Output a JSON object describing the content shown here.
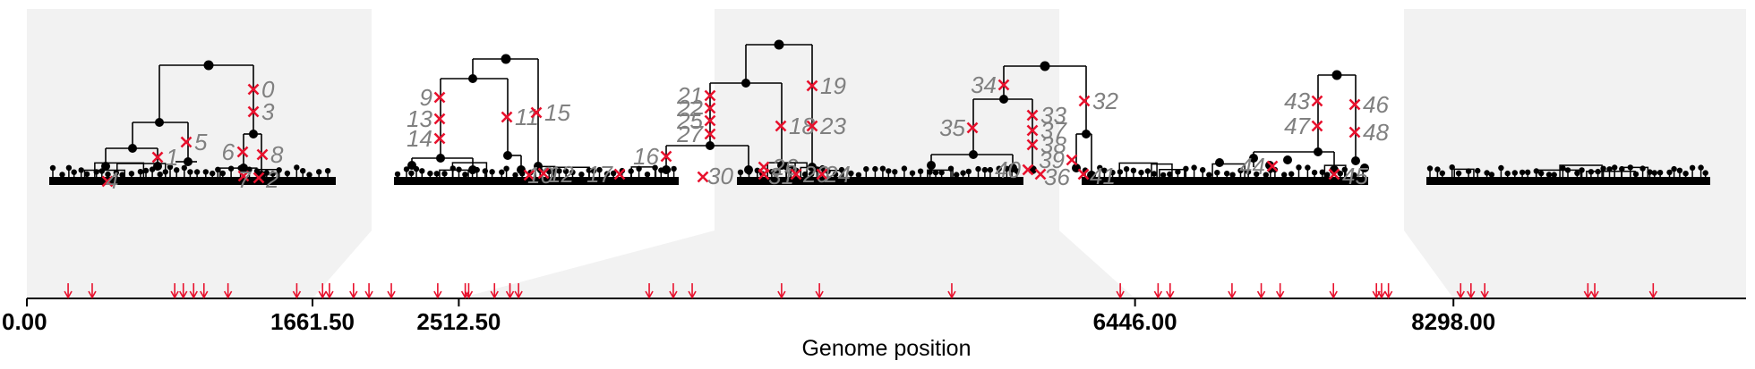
{
  "axis": {
    "title": "Genome position",
    "genome_length": 10000,
    "tick_labels": [
      "0.00",
      "1661.50",
      "2512.50",
      "6446.00",
      "8298.00"
    ],
    "tick_values": [
      0,
      1661.5,
      2512.5,
      6446,
      8298
    ]
  },
  "trees": [
    {
      "interval": [
        0,
        1661.5
      ],
      "mutation_labels": [
        "0",
        "3",
        "5",
        "1",
        "6",
        "8",
        "4",
        "7",
        "2"
      ]
    },
    {
      "interval": [
        1661.5,
        2512.5
      ],
      "mutation_labels": [
        "9",
        "13",
        "14",
        "11",
        "15",
        "10",
        "12"
      ]
    },
    {
      "interval": [
        2512.5,
        6446
      ],
      "mutation_labels": [
        "21",
        "22",
        "25",
        "27",
        "16",
        "17",
        "19",
        "18",
        "23",
        "26",
        "31",
        "20",
        "24",
        "30"
      ]
    },
    {
      "interval": [
        6446,
        8298
      ],
      "mutation_labels": [
        "34",
        "35",
        "33",
        "37",
        "38",
        "39",
        "32",
        "40",
        "41",
        "36"
      ]
    },
    {
      "interval": [
        8298,
        10000
      ],
      "mutation_labels": [
        "43",
        "47",
        "46",
        "48",
        "44",
        "45"
      ]
    }
  ],
  "site_positions": [
    240,
    380,
    860,
    910,
    970,
    1030,
    1170,
    1570,
    1720,
    1760,
    1900,
    1990,
    2120,
    2390,
    2550,
    2570,
    2720,
    2810,
    2860,
    3620,
    3760,
    3870,
    4390,
    4610,
    5380,
    6360,
    6580,
    6650,
    7010,
    7180,
    7290,
    7600,
    7850,
    7880,
    7920,
    8340,
    8400,
    8480,
    9080,
    9120,
    9460
  ],
  "colors": {
    "mutation": "#e8112d",
    "panel": "#f2f2f2",
    "node": "#000000",
    "label": "#808080"
  }
}
